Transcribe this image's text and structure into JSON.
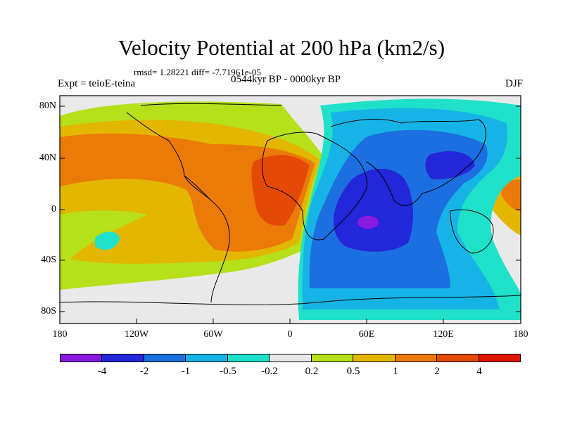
{
  "title": "Velocity Potential at 200 hPa (km2/s)",
  "stats": "rmsd= 1.28221 diff= -7.71961e-05",
  "experiment": "Expt = teioE-teina",
  "period": "0544kyr BP - 0000kyr BP",
  "season": "DJF",
  "lat_labels": [
    "80N",
    "40N",
    "0",
    "40S",
    "80S"
  ],
  "lon_labels": [
    "180",
    "120W",
    "60W",
    "0",
    "60E",
    "120E",
    "180"
  ],
  "colorbar": {
    "labels": [
      "-4",
      "-2",
      "-1",
      "-0.5",
      "-0.2",
      "0.2",
      "0.5",
      "1",
      "2",
      "4"
    ],
    "colors": [
      "#8a1adf",
      "#2326d9",
      "#1c6fe0",
      "#16b4e6",
      "#1fe0c9",
      "#e9e9e9",
      "#b5e01a",
      "#e3b600",
      "#ec7a08",
      "#e44a05",
      "#e01705"
    ]
  }
}
